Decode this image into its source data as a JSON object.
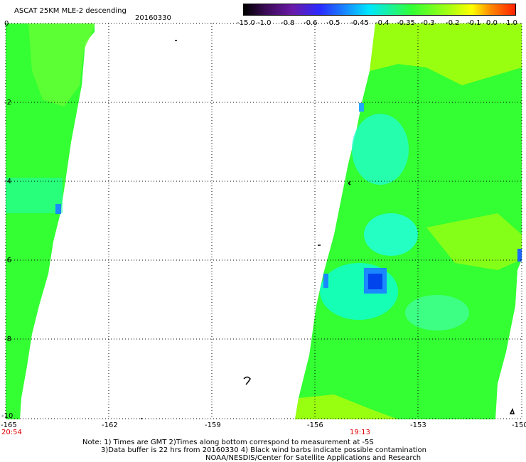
{
  "header": {
    "title": "ASCAT 25KM MLE-2 descending",
    "date": "20160330"
  },
  "colorbar": {
    "labels": [
      "-15.0",
      "-1.0",
      "-0.8",
      "-0.6",
      "-0.5",
      "-0.45",
      "-0.4",
      "-0.35",
      "-0.3",
      "-0.2",
      "-0.1",
      "0.0",
      "1.0"
    ]
  },
  "axes": {
    "x_ticks": [
      "-165",
      "-162",
      "-159",
      "-156",
      "-153",
      "-150"
    ],
    "y_ticks": [
      "0",
      "-2",
      "-4",
      "-6",
      "-8",
      "-10"
    ]
  },
  "times": {
    "left": "20:54",
    "right": "19:13"
  },
  "notes": {
    "line1": "Note: 1) Times are GMT 2)Times along bottom correspond to measurement at -5S",
    "line2": "3)Data buffer is 22 hrs from 20160330 4) Black wind barbs indicate possible contamination",
    "line3": "NOAA/NESDIS/Center for Satellite Applications and Research"
  },
  "colors": {
    "swath_green": "#33ff33",
    "swath_light": "#88ff22",
    "cyan": "#00ffee",
    "blue": "#0055ff"
  }
}
